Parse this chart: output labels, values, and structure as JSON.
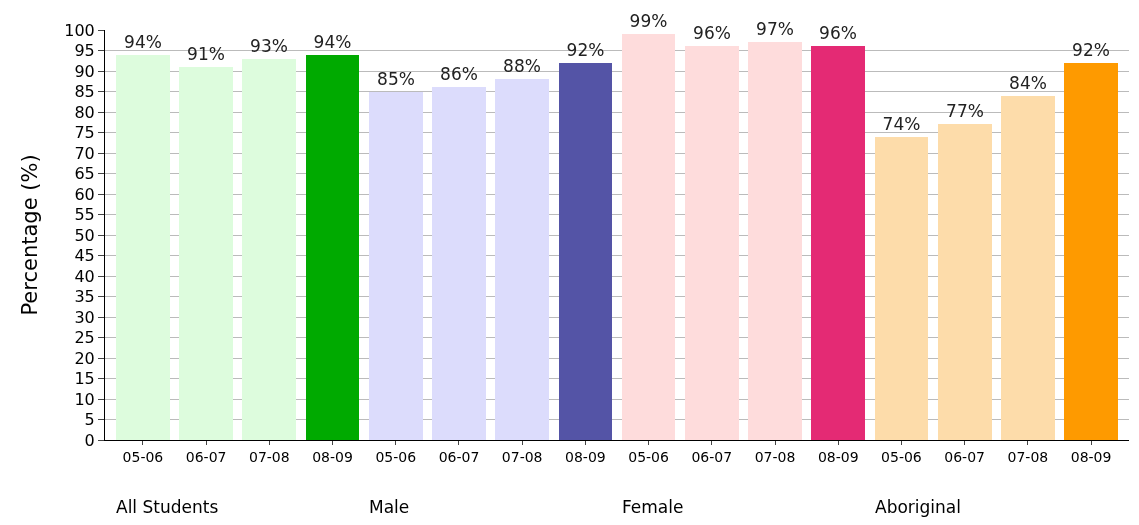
{
  "chart_data": {
    "type": "bar",
    "ylabel": "Percentage (%)",
    "categories": [
      "05-06",
      "06-07",
      "07-08",
      "08-09",
      "05-06",
      "06-07",
      "07-08",
      "08-09",
      "05-06",
      "06-07",
      "07-08",
      "08-09",
      "05-06",
      "06-07",
      "07-08",
      "08-09"
    ],
    "values": [
      94,
      91,
      93,
      94,
      85,
      86,
      88,
      92,
      99,
      96,
      97,
      96,
      74,
      77,
      84,
      92
    ],
    "value_labels": [
      "94%",
      "91%",
      "93%",
      "94%",
      "85%",
      "86%",
      "88%",
      "92%",
      "99%",
      "96%",
      "97%",
      "96%",
      "74%",
      "77%",
      "84%",
      "92%"
    ],
    "colors": [
      "#ddfcdd",
      "#ddfcdd",
      "#ddfcdd",
      "#00aa00",
      "#dcdcfc",
      "#dcdcfc",
      "#dcdcfc",
      "#5454a6",
      "#fedcdc",
      "#fedcdc",
      "#fedcdc",
      "#e42a74",
      "#fddcaa",
      "#fddcaa",
      "#fddcaa",
      "#fe9a00"
    ],
    "annotations": [
      "All Students",
      "Male",
      "Female",
      "Aboriginal"
    ],
    "ylim": [
      0,
      100
    ],
    "yticks": [
      0,
      5,
      10,
      15,
      20,
      25,
      30,
      35,
      40,
      45,
      50,
      55,
      60,
      65,
      70,
      75,
      80,
      85,
      90,
      95,
      100
    ],
    "grid": "y",
    "legend": false
  }
}
